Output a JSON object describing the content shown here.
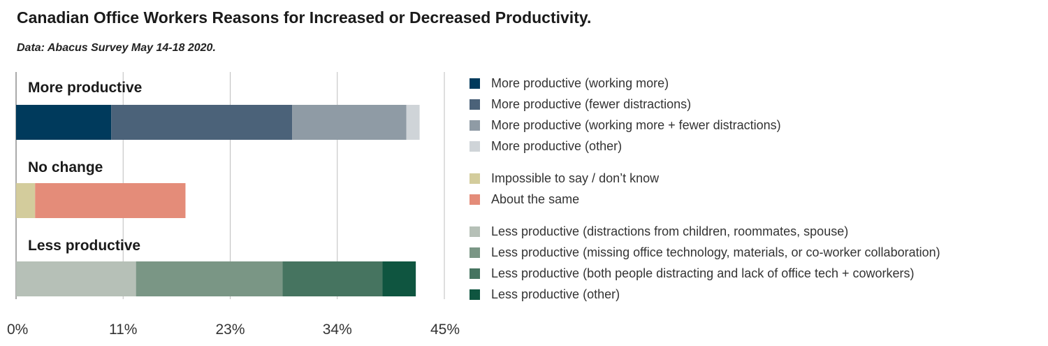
{
  "chart_data": {
    "type": "bar",
    "orientation": "horizontal",
    "stacked": true,
    "title": "Canadian Office Workers Reasons for Increased or Decreased Productivity.",
    "subtitle": "Data: Abacus Survey May 14-18 2020.",
    "xlim": [
      0,
      45
    ],
    "x_ticks": [
      "0%",
      "11%",
      "23%",
      "34%",
      "45%"
    ],
    "x_tick_values": [
      0,
      11.25,
      22.5,
      33.75,
      45
    ],
    "grid": true,
    "legend_position": "right",
    "categories": [
      "More productive",
      "No change",
      "Less productive"
    ],
    "series": [
      {
        "name": "More productive (working more)",
        "color": "#003a5c",
        "values": [
          10,
          0,
          0
        ]
      },
      {
        "name": "More productive (fewer distractions)",
        "color": "#4b6279",
        "values": [
          19,
          0,
          0
        ]
      },
      {
        "name": "More productive (working more + fewer distractions)",
        "color": "#8f9ba5",
        "values": [
          12,
          0,
          0
        ]
      },
      {
        "name": "More productive (other)",
        "color": "#cfd4d8",
        "values": [
          1.4,
          0,
          0
        ]
      },
      {
        "name": "Impossible to say / don’t know",
        "color": "#d3cc9c",
        "values": [
          0,
          2,
          0
        ]
      },
      {
        "name": "About the same",
        "color": "#e48c79",
        "values": [
          0,
          15.8,
          0
        ]
      },
      {
        "name": "Less productive (distractions from children, roommates, spouse)",
        "color": "#b6c0b7",
        "values": [
          0,
          0,
          12.6
        ]
      },
      {
        "name": "Less productive (missing office technology, materials, or co-worker collaboration)",
        "color": "#7a9685",
        "values": [
          0,
          0,
          15.4
        ]
      },
      {
        "name": "Less productive (both people distracting and lack of office tech + coworkers)",
        "color": "#467460",
        "values": [
          0,
          0,
          10.5
        ]
      },
      {
        "name": "Less productive (other)",
        "color": "#0f5540",
        "values": [
          0,
          0,
          3.5
        ]
      }
    ],
    "legend_groups": [
      [
        0,
        1,
        2,
        3
      ],
      [
        4,
        5
      ],
      [
        6,
        7,
        8,
        9
      ]
    ]
  }
}
